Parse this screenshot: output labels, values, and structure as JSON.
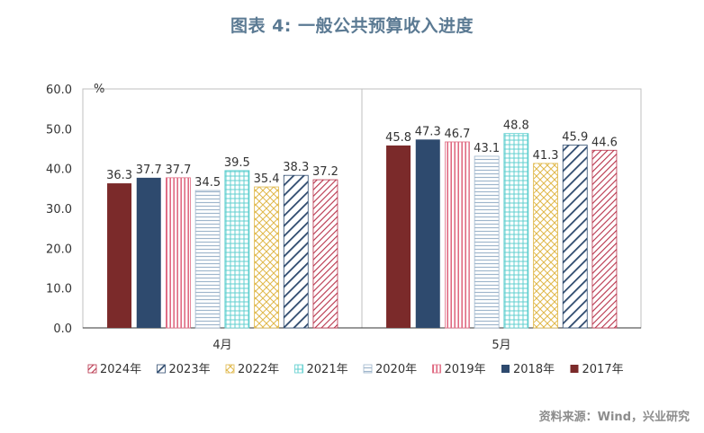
{
  "title": "图表 4: 一般公共预算收入进度",
  "source": "资料来源：Wind，兴业研究",
  "chart_data": {
    "type": "bar",
    "title": "图表 4: 一般公共预算收入进度",
    "unit_label": "%",
    "categories": [
      "4月",
      "5月"
    ],
    "ylim": [
      0,
      60
    ],
    "yticks": [
      "0.0",
      "10.0",
      "20.0",
      "30.0",
      "40.0",
      "50.0",
      "60.0"
    ],
    "grid": false,
    "legend_position": "bottom",
    "series": [
      {
        "name": "2017年",
        "values": [
          36.3,
          45.8
        ],
        "labels": [
          "36.3",
          "45.8"
        ],
        "color": "#7b2a2a",
        "pattern": "solid"
      },
      {
        "name": "2018年",
        "values": [
          37.7,
          47.3
        ],
        "labels": [
          "37.7",
          "47.3"
        ],
        "color": "#2e4a6e",
        "pattern": "solid"
      },
      {
        "name": "2019年",
        "values": [
          37.7,
          46.7
        ],
        "labels": [
          "37.7",
          "46.7"
        ],
        "color": "#e06a82",
        "pattern": "vertical"
      },
      {
        "name": "2020年",
        "values": [
          34.5,
          43.1
        ],
        "labels": [
          "34.5",
          "43.1"
        ],
        "color": "#9fb6cc",
        "pattern": "horizontal"
      },
      {
        "name": "2021年",
        "values": [
          39.5,
          48.8
        ],
        "labels": [
          "39.5",
          "48.8"
        ],
        "color": "#5fcfcf",
        "pattern": "grid"
      },
      {
        "name": "2022年",
        "values": [
          35.4,
          41.3
        ],
        "labels": [
          "35.4",
          "41.3"
        ],
        "color": "#e0b84a",
        "pattern": "cross"
      },
      {
        "name": "2023年",
        "values": [
          38.3,
          45.9
        ],
        "labels": [
          "38.3",
          "45.9"
        ],
        "color": "#2e4a6e",
        "pattern": "wide-diagonal"
      },
      {
        "name": "2024年",
        "values": [
          37.2,
          44.6
        ],
        "labels": [
          "37.2",
          "44.6"
        ],
        "color": "#b8324a",
        "pattern": "diagonal"
      }
    ],
    "legend_order": [
      "2024年",
      "2023年",
      "2022年",
      "2021年",
      "2020年",
      "2019年",
      "2018年",
      "2017年"
    ]
  }
}
